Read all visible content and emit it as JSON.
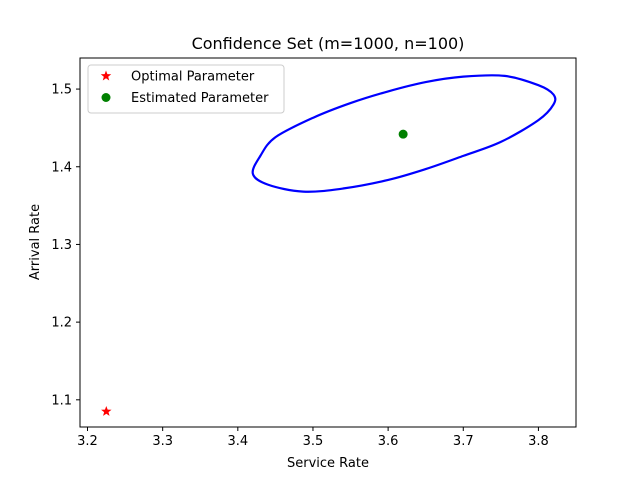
{
  "chart_data": {
    "type": "scatter",
    "title": "Confidence Set (m=1000, n=100)",
    "xlabel": "Service Rate",
    "ylabel": "Arrival Rate",
    "xlim": [
      3.19,
      3.85
    ],
    "ylim": [
      1.065,
      1.54
    ],
    "xticks": [
      3.2,
      3.3,
      3.4,
      3.5,
      3.6,
      3.7,
      3.8
    ],
    "yticks": [
      1.1,
      1.2,
      1.3,
      1.4,
      1.5
    ],
    "xtick_labels": [
      "3.2",
      "3.3",
      "3.4",
      "3.5",
      "3.6",
      "3.7",
      "3.8"
    ],
    "ytick_labels": [
      "1.1",
      "1.2",
      "1.3",
      "1.4",
      "1.5"
    ],
    "grid": false,
    "legend_position": "upper-left",
    "series": [
      {
        "name": "Optimal Parameter",
        "marker": "star",
        "color": "#ff0000",
        "points": [
          [
            3.225,
            1.085
          ]
        ]
      },
      {
        "name": "Estimated Parameter",
        "marker": "circle",
        "color": "#008000",
        "points": [
          [
            3.62,
            1.442
          ]
        ]
      }
    ],
    "confidence_ellipse": {
      "color": "#0000ff",
      "center": [
        3.62,
        1.442
      ],
      "points": [
        [
          3.82,
          1.493
        ],
        [
          3.8,
          1.505
        ],
        [
          3.755,
          1.517
        ],
        [
          3.7,
          1.516
        ],
        [
          3.65,
          1.509
        ],
        [
          3.6,
          1.497
        ],
        [
          3.55,
          1.482
        ],
        [
          3.5,
          1.463
        ],
        [
          3.45,
          1.438
        ],
        [
          3.43,
          1.414
        ],
        [
          3.42,
          1.391
        ],
        [
          3.44,
          1.377
        ],
        [
          3.487,
          1.368
        ],
        [
          3.54,
          1.372
        ],
        [
          3.6,
          1.383
        ],
        [
          3.65,
          1.397
        ],
        [
          3.7,
          1.414
        ],
        [
          3.75,
          1.432
        ],
        [
          3.8,
          1.46
        ],
        [
          3.82,
          1.48
        ]
      ]
    }
  }
}
